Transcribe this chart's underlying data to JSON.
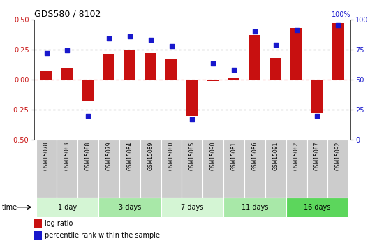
{
  "title": "GDS580 / 8102",
  "samples": [
    "GSM15078",
    "GSM15083",
    "GSM15088",
    "GSM15079",
    "GSM15084",
    "GSM15089",
    "GSM15080",
    "GSM15085",
    "GSM15090",
    "GSM15081",
    "GSM15086",
    "GSM15091",
    "GSM15082",
    "GSM15087",
    "GSM15092"
  ],
  "log_ratio": [
    0.07,
    0.1,
    -0.18,
    0.21,
    0.25,
    0.22,
    0.17,
    -0.3,
    -0.01,
    0.01,
    0.37,
    0.18,
    0.43,
    -0.28,
    0.47
  ],
  "percentile_rank": [
    72,
    74,
    20,
    84,
    86,
    83,
    78,
    17,
    63,
    58,
    90,
    79,
    91,
    20,
    95
  ],
  "groups": [
    {
      "label": "1 day",
      "start": 0,
      "end": 3,
      "color": "#d4f5d4"
    },
    {
      "label": "3 days",
      "start": 3,
      "end": 6,
      "color": "#a8e8a8"
    },
    {
      "label": "7 days",
      "start": 6,
      "end": 9,
      "color": "#d4f5d4"
    },
    {
      "label": "11 days",
      "start": 9,
      "end": 12,
      "color": "#a8e8a8"
    },
    {
      "label": "16 days",
      "start": 12,
      "end": 15,
      "color": "#5cd65c"
    }
  ],
  "bar_color": "#c81010",
  "dot_color": "#1818cc",
  "ylim_left": [
    -0.5,
    0.5
  ],
  "ylim_right": [
    0,
    100
  ],
  "yticks_left": [
    -0.5,
    -0.25,
    0.0,
    0.25,
    0.5
  ],
  "yticks_right": [
    0,
    25,
    50,
    75,
    100
  ],
  "sample_box_color": "#cccccc",
  "legend_labels": [
    "log ratio",
    "percentile rank within the sample"
  ]
}
